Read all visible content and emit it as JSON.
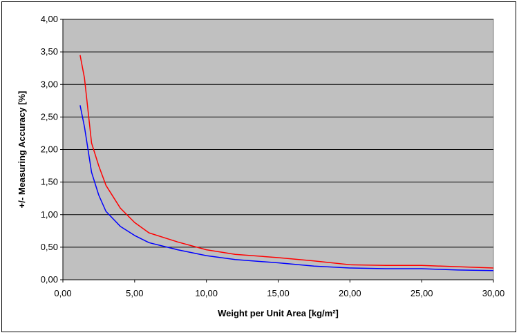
{
  "chart_data": {
    "type": "line",
    "title": "",
    "xlabel": "Weight per Unit Area [kg/m²]",
    "ylabel": "+/- Measuring Accuracy [%]",
    "xlim": [
      0,
      30
    ],
    "ylim": [
      0,
      4
    ],
    "xticks": [
      "0,00",
      "5,00",
      "10,00",
      "15,00",
      "20,00",
      "25,00",
      "30,00"
    ],
    "yticks": [
      "0,00",
      "0,50",
      "1,00",
      "1,50",
      "2,00",
      "2,50",
      "3,00",
      "3,50",
      "4,00"
    ],
    "grid": "horizontal",
    "plot_background": "#c0c0c0",
    "legend": "none",
    "series": [
      {
        "color": "#ff0000",
        "points": [
          [
            1.2,
            3.45
          ],
          [
            1.5,
            3.1
          ],
          [
            2.0,
            2.1
          ],
          [
            2.5,
            1.75
          ],
          [
            3.0,
            1.45
          ],
          [
            4.0,
            1.1
          ],
          [
            5.0,
            0.88
          ],
          [
            6.0,
            0.72
          ],
          [
            8.0,
            0.58
          ],
          [
            10.0,
            0.46
          ],
          [
            12.0,
            0.39
          ],
          [
            15.0,
            0.34
          ],
          [
            17.5,
            0.29
          ],
          [
            20.0,
            0.23
          ],
          [
            22.5,
            0.22
          ],
          [
            25.0,
            0.22
          ],
          [
            27.5,
            0.2
          ],
          [
            30.0,
            0.18
          ]
        ]
      },
      {
        "color": "#0000ff",
        "points": [
          [
            1.2,
            2.68
          ],
          [
            1.5,
            2.35
          ],
          [
            2.0,
            1.65
          ],
          [
            2.5,
            1.3
          ],
          [
            3.0,
            1.05
          ],
          [
            4.0,
            0.82
          ],
          [
            5.0,
            0.68
          ],
          [
            6.0,
            0.57
          ],
          [
            8.0,
            0.46
          ],
          [
            10.0,
            0.37
          ],
          [
            12.0,
            0.31
          ],
          [
            15.0,
            0.26
          ],
          [
            17.5,
            0.21
          ],
          [
            20.0,
            0.18
          ],
          [
            22.5,
            0.17
          ],
          [
            25.0,
            0.17
          ],
          [
            27.5,
            0.15
          ],
          [
            30.0,
            0.14
          ]
        ]
      }
    ]
  }
}
